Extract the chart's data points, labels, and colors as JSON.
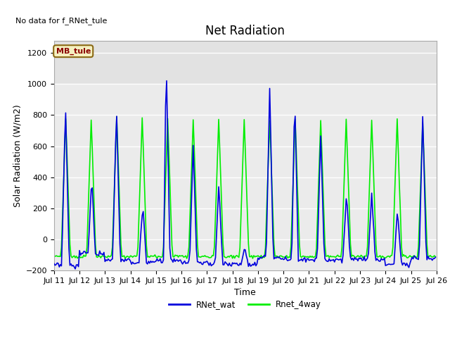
{
  "title": "Net Radiation",
  "xlabel": "Time",
  "ylabel": "Solar Radiation (W/m2)",
  "no_data_text": "No data for f_RNet_tule",
  "legend_box_text": "MB_tule",
  "ylim": [
    -200,
    1280
  ],
  "yticks": [
    -200,
    0,
    200,
    400,
    600,
    800,
    1000,
    1200
  ],
  "line1_label": "RNet_wat",
  "line2_label": "Rnet_4way",
  "line1_color": "#0000dd",
  "line2_color": "#00ee00",
  "bg_color": "#ebebeb",
  "plot_bg": "#f0f0f0",
  "title_fontsize": 12,
  "axis_label_fontsize": 9,
  "tick_fontsize": 8,
  "linewidth": 1.2
}
